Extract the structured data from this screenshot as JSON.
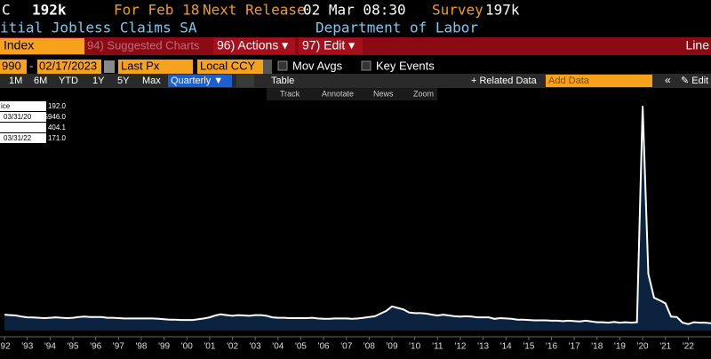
{
  "header": {
    "ticker": "C",
    "last": "192k",
    "for_label": "For Feb 18",
    "next_label": "Next Release",
    "next_date": "02 Mar 08:30",
    "survey_label": "Survey",
    "survey_value": "197k",
    "name": "itial Jobless Claims SA",
    "source": "Department of Labor"
  },
  "menu": {
    "index": "Index",
    "suggested": "94) Suggested Charts",
    "actions": "96) Actions ▾",
    "edit": "97) Edit ▾",
    "right": "Line"
  },
  "controls": {
    "start": "990",
    "dash": "-",
    "end": "02/17/2023",
    "field": "Last Px",
    "currency": "Local CCY",
    "mov_avgs": "Mov Avgs",
    "key_events": "Key Events"
  },
  "ranges": {
    "buttons": [
      "1M",
      "6M",
      "YTD",
      "1Y",
      "5Y",
      "Max"
    ],
    "period": "Quarterly ▼",
    "table": "Table",
    "related": "+ Related Data",
    "add_data": "Add Data",
    "arrows": "«",
    "edit": "✎ Edit"
  },
  "tools": [
    "Track",
    "Annotate",
    "News",
    "Zoom"
  ],
  "legend": {
    "rows": [
      [
        "ice",
        "",
        "192.0"
      ],
      [
        "",
        "03/31/20",
        "5946.0"
      ],
      [
        "",
        "",
        "404.1"
      ],
      [
        "",
        "03/31/22",
        "171.0"
      ]
    ]
  },
  "chart_data": {
    "type": "line",
    "color": "#ffffff",
    "fill": "#0c2340",
    "x": [
      1992,
      1992.25,
      1992.5,
      1992.75,
      1993,
      1993.25,
      1993.5,
      1993.75,
      1994,
      1994.25,
      1994.5,
      1994.75,
      1995,
      1995.25,
      1995.5,
      1995.75,
      1996,
      1996.25,
      1996.5,
      1996.75,
      1997,
      1997.25,
      1997.5,
      1997.75,
      1998,
      1998.25,
      1998.5,
      1998.75,
      1999,
      1999.25,
      1999.5,
      1999.75,
      2000,
      2000.25,
      2000.5,
      2000.75,
      2001,
      2001.25,
      2001.5,
      2001.75,
      2002,
      2002.25,
      2002.5,
      2002.75,
      2003,
      2003.25,
      2003.5,
      2003.75,
      2004,
      2004.25,
      2004.5,
      2004.75,
      2005,
      2005.25,
      2005.5,
      2005.75,
      2006,
      2006.25,
      2006.5,
      2006.75,
      2007,
      2007.25,
      2007.5,
      2007.75,
      2008,
      2008.25,
      2008.5,
      2008.75,
      2009,
      2009.25,
      2009.5,
      2009.75,
      2010,
      2010.25,
      2010.5,
      2010.75,
      2011,
      2011.25,
      2011.5,
      2011.75,
      2012,
      2012.25,
      2012.5,
      2012.75,
      2013,
      2013.25,
      2013.5,
      2013.75,
      2014,
      2014.25,
      2014.5,
      2014.75,
      2015,
      2015.25,
      2015.5,
      2015.75,
      2016,
      2016.25,
      2016.5,
      2016.75,
      2017,
      2017.25,
      2017.5,
      2017.75,
      2018,
      2018.25,
      2018.5,
      2018.75,
      2019,
      2019.25,
      2019.5,
      2019.75,
      2020,
      2020.25,
      2020.5,
      2020.75,
      2021,
      2021.25,
      2021.5,
      2021.75,
      2022,
      2022.25,
      2022.5,
      2022.75,
      2023
    ],
    "values": [
      420,
      410,
      400,
      370,
      350,
      345,
      340,
      330,
      340,
      350,
      340,
      330,
      340,
      360,
      370,
      360,
      360,
      360,
      340,
      340,
      330,
      320,
      320,
      320,
      320,
      320,
      320,
      310,
      300,
      290,
      290,
      280,
      280,
      280,
      300,
      320,
      350,
      400,
      430,
      410,
      390,
      410,
      400,
      390,
      410,
      410,
      390,
      350,
      340,
      340,
      330,
      330,
      330,
      330,
      340,
      320,
      310,
      310,
      320,
      320,
      320,
      310,
      320,
      340,
      360,
      380,
      450,
      520,
      640,
      600,
      560,
      480,
      460,
      460,
      450,
      420,
      400,
      420,
      400,
      380,
      370,
      380,
      370,
      350,
      350,
      350,
      310,
      330,
      320,
      310,
      290,
      290,
      280,
      270,
      270,
      270,
      260,
      260,
      250,
      260,
      250,
      240,
      260,
      240,
      220,
      220,
      210,
      230,
      210,
      220,
      210,
      220,
      5946,
      1500,
      870,
      800,
      720,
      370,
      360,
      210,
      171,
      220,
      210,
      210,
      192
    ],
    "xlim": [
      1991.8,
      2023
    ],
    "ylim": [
      0,
      6400
    ],
    "xticks": [
      {
        "value": 1992,
        "label": "'92"
      },
      {
        "value": 1993,
        "label": "'93"
      },
      {
        "value": 1994,
        "label": "'94"
      },
      {
        "value": 1995,
        "label": "'95"
      },
      {
        "value": 1996,
        "label": "'96"
      },
      {
        "value": 1997,
        "label": "'97"
      },
      {
        "value": 1998,
        "label": "'98"
      },
      {
        "value": 1999,
        "label": "'99"
      },
      {
        "value": 2000,
        "label": "'00"
      },
      {
        "value": 2001,
        "label": "'01"
      },
      {
        "value": 2002,
        "label": "'02"
      },
      {
        "value": 2003,
        "label": "'03"
      },
      {
        "value": 2004,
        "label": "'04"
      },
      {
        "value": 2005,
        "label": "'05"
      },
      {
        "value": 2006,
        "label": "'06"
      },
      {
        "value": 2007,
        "label": "'07"
      },
      {
        "value": 2008,
        "label": "'08"
      },
      {
        "value": 2009,
        "label": "'09"
      },
      {
        "value": 2010,
        "label": "'10"
      },
      {
        "value": 2011,
        "label": "'11"
      },
      {
        "value": 2012,
        "label": "'12"
      },
      {
        "value": 2013,
        "label": "'13"
      },
      {
        "value": 2014,
        "label": "'14"
      },
      {
        "value": 2015,
        "label": "'15"
      },
      {
        "value": 2016,
        "label": "'16"
      },
      {
        "value": 2017,
        "label": "'17"
      },
      {
        "value": 2018,
        "label": "'18"
      },
      {
        "value": 2019,
        "label": "'19"
      },
      {
        "value": 2020,
        "label": "'20"
      },
      {
        "value": 2021,
        "label": "'21"
      },
      {
        "value": 2022,
        "label": "'22"
      }
    ]
  }
}
